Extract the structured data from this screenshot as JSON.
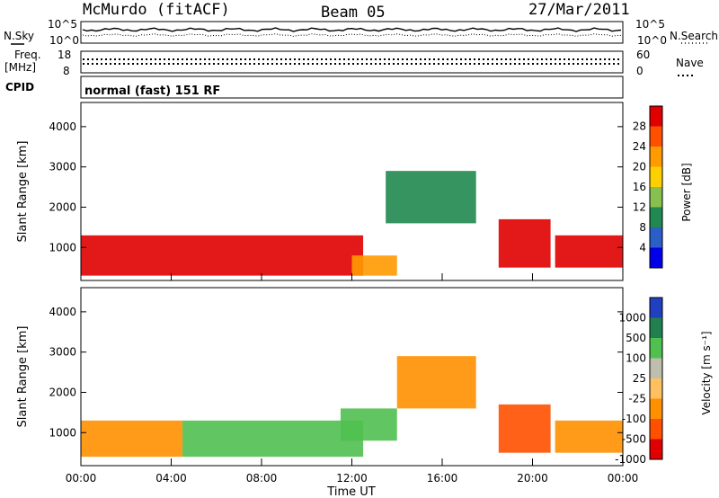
{
  "header": {
    "station": "McMurdo (fitACF)",
    "beam": "Beam 05",
    "date": "27/Mar/2011"
  },
  "strip_labels": {
    "nsky": "N.Sky",
    "nsearch": "N.Search",
    "freq_line1": "Freq.",
    "freq_line2": "[MHz]",
    "nave": "Nave",
    "cpid": "CPID",
    "cpid_value": "normal (fast) 151 RF"
  },
  "chart_data": [
    {
      "type": "line",
      "name": "noise",
      "ylabel_left": "N.Sky",
      "ylabel_right": "N.Search",
      "yticks_left": [
        "10^5",
        "10^0"
      ],
      "yticks_right": [
        "10^5",
        "10^0"
      ],
      "scale": "log",
      "ylim": [
        1,
        100000
      ]
    },
    {
      "type": "line",
      "name": "frequency-nave",
      "ylabel_left": "Freq. [MHz]",
      "ylabel_right": "Nave",
      "yticks_left": [
        "18",
        "8"
      ],
      "yticks_right": [
        "60",
        "0"
      ],
      "ylim_left": [
        8,
        18
      ],
      "ylim_right": [
        0,
        60
      ]
    },
    {
      "type": "heatmap",
      "name": "power",
      "ylabel": "Slant Range [km]",
      "yticks": [
        "4000",
        "3000",
        "2000",
        "1000"
      ],
      "ylim": [
        180,
        4600
      ],
      "colorbar_label": "Power [dB]",
      "colorbar_ticks": [
        "28",
        "24",
        "20",
        "16",
        "12",
        "8",
        "4"
      ],
      "colorbar_colors": [
        "#e00000",
        "#ff5000",
        "#ff9a00",
        "#ffd000",
        "#88c050",
        "#208850",
        "#2a5fc8",
        "#0000e8"
      ],
      "bands": [
        {
          "x": [
            0,
            12.5
          ],
          "y": [
            300,
            1300
          ],
          "value": 28
        },
        {
          "x": [
            12,
            14
          ],
          "y": [
            300,
            800
          ],
          "value": 20
        },
        {
          "x": [
            13.5,
            17.5
          ],
          "y": [
            1600,
            2900
          ],
          "value": 8
        },
        {
          "x": [
            18.5,
            20.8
          ],
          "y": [
            500,
            1700
          ],
          "value": 28
        },
        {
          "x": [
            21,
            24
          ],
          "y": [
            500,
            1300
          ],
          "value": 28
        }
      ]
    },
    {
      "type": "heatmap",
      "name": "velocity",
      "ylabel": "Slant Range [km]",
      "yticks": [
        "4000",
        "3000",
        "2000",
        "1000"
      ],
      "ylim": [
        180,
        4600
      ],
      "colorbar_label": "Velocity [m s⁻¹]",
      "colorbar_ticks": [
        "1000",
        "500",
        "100",
        "25",
        "-25",
        "-100",
        "-500",
        "-1000"
      ],
      "colorbar_colors": [
        "#2040c0",
        "#208050",
        "#50c050",
        "#bebeae",
        "#ffc060",
        "#ff9000",
        "#ff5000",
        "#e00000"
      ],
      "bands": [
        {
          "x": [
            0,
            4.5
          ],
          "y": [
            400,
            1300
          ],
          "value": -100
        },
        {
          "x": [
            4.5,
            12.5
          ],
          "y": [
            400,
            1300
          ],
          "value": 100
        },
        {
          "x": [
            11.5,
            14
          ],
          "y": [
            800,
            1600
          ],
          "value": 100
        },
        {
          "x": [
            14,
            17.5
          ],
          "y": [
            1600,
            2900
          ],
          "value": -100
        },
        {
          "x": [
            18.5,
            20.8
          ],
          "y": [
            500,
            1700
          ],
          "value": -500
        },
        {
          "x": [
            21,
            24
          ],
          "y": [
            500,
            1300
          ],
          "value": -100
        }
      ]
    }
  ],
  "x_axis": {
    "ticks": [
      "00:00",
      "04:00",
      "08:00",
      "12:00",
      "16:00",
      "20:00",
      "00:00"
    ],
    "xlim": [
      0,
      24
    ],
    "xlabel": "Time UT"
  }
}
